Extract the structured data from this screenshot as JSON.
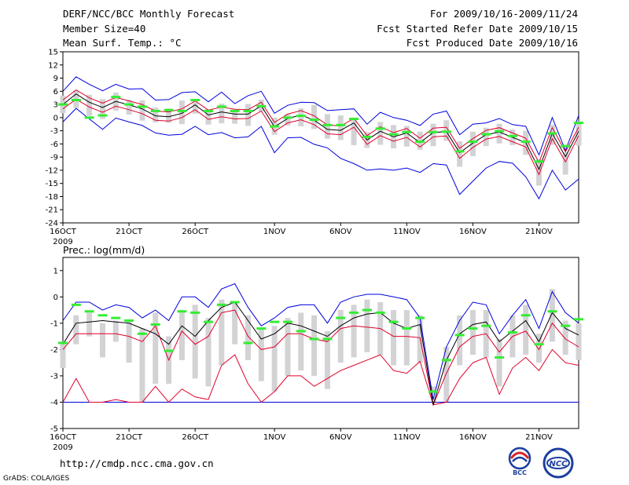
{
  "header": {
    "title": "DERF/NCC/BCC Monthly Forecast",
    "member_size": "Member Size=40",
    "variable": "Mean Surf. Temp.: °C",
    "period": "For 2009/10/16-2009/11/24",
    "fcst_started": "Fcst Started Refer Date 2009/10/15",
    "fcst_produced": "Fcst Produced Date 2009/10/16"
  },
  "footer": {
    "url": "http://cmdp.ncc.cma.gov.cn",
    "grads": "GrADS: COLA/IGES",
    "logo_left_text": "BCC",
    "logo_right_text": "NCC"
  },
  "colors": {
    "box": "#d3d3d6",
    "median": "#000000",
    "inner_band": "#e0002a",
    "outer_band": "#0000dd",
    "observed": "#33ee33"
  },
  "chart_data": [
    {
      "type": "line",
      "title": "Mean Surf. Temp.: °C",
      "ylabel": "°C",
      "ylim": [
        -24,
        15
      ],
      "yticks": [
        15,
        12,
        9,
        6,
        3,
        0,
        -3,
        -6,
        -9,
        -12,
        -15,
        -18,
        -21,
        -24
      ],
      "xlim": [
        16,
        55
      ],
      "xticks": [
        {
          "day": 16,
          "label": "16OCT"
        },
        {
          "day": 21,
          "label": "21OCT"
        },
        {
          "day": 26,
          "label": "26OCT"
        },
        {
          "day": 32,
          "label": "1NOV"
        },
        {
          "day": 37,
          "label": "6NOV"
        },
        {
          "day": 42,
          "label": "11NOV"
        },
        {
          "day": 47,
          "label": "16NOV"
        },
        {
          "day": 52,
          "label": "21NOV"
        }
      ],
      "year_label": "2009",
      "days": [
        16,
        17,
        18,
        19,
        20,
        21,
        22,
        23,
        24,
        25,
        26,
        27,
        28,
        29,
        30,
        31,
        32,
        33,
        34,
        35,
        36,
        37,
        38,
        39,
        40,
        41,
        42,
        43,
        44,
        45,
        46,
        47,
        48,
        49,
        50,
        51,
        52,
        53,
        54,
        55
      ],
      "series": [
        {
          "name": "median",
          "values": [
            3,
            5.4,
            3.5,
            2.3,
            3.7,
            2.9,
            2,
            0.4,
            0.2,
            1,
            2.9,
            0.6,
            1.3,
            0.8,
            0.8,
            2.7,
            -2.1,
            -0.2,
            0.6,
            -0.6,
            -2.7,
            -2.9,
            -1.2,
            -5.1,
            -3.1,
            -4.4,
            -3.5,
            -5.7,
            -3.4,
            -3.2,
            -8,
            -5.8,
            -3.9,
            -3.3,
            -4.5,
            -5.7,
            -11.8,
            -3.6,
            -8.9,
            -3.1
          ]
        },
        {
          "name": "red_upper",
          "values": [
            4,
            6.3,
            4.5,
            3.3,
            4.6,
            3.8,
            3,
            1.5,
            1.3,
            2,
            3.8,
            1.7,
            2.4,
            1.9,
            1.8,
            3.5,
            -1.1,
            0.8,
            1.6,
            0.4,
            -1.7,
            -1.9,
            -0.2,
            -4.1,
            -2.1,
            -3.4,
            -2.5,
            -4.7,
            -2.4,
            -2.2,
            -7,
            -4.8,
            -2.9,
            -2.3,
            -3.5,
            -4.7,
            -10.2,
            -2.3,
            -7.8,
            -2.2
          ]
        },
        {
          "name": "red_lower",
          "values": [
            2,
            4.2,
            2.4,
            1.2,
            2.6,
            1.8,
            0.9,
            -0.6,
            -0.8,
            0,
            1.8,
            -0.4,
            0.2,
            -0.3,
            -0.2,
            1.5,
            -3.2,
            -1.2,
            -0.5,
            -1.6,
            -3.7,
            -3.9,
            -2.2,
            -6.1,
            -4.1,
            -5.4,
            -4.5,
            -6.7,
            -4.4,
            -4.2,
            -9.3,
            -6.8,
            -4.9,
            -4.3,
            -5.5,
            -6.7,
            -13,
            -4.8,
            -10.1,
            -4.1
          ]
        },
        {
          "name": "blue_upper",
          "values": [
            6,
            9.3,
            7.6,
            6.1,
            7.6,
            6.5,
            6.6,
            4,
            4.1,
            5.7,
            5.9,
            3.6,
            5.8,
            3.2,
            5,
            6,
            1,
            2.8,
            3.5,
            3.4,
            1.6,
            1.8,
            2,
            -1.5,
            1.2,
            0,
            -0.6,
            -1.8,
            0.8,
            1.5,
            -3.9,
            -1.5,
            -1.2,
            -0.2,
            -1.6,
            -2,
            -8.5,
            0,
            -7.5,
            0.5
          ]
        },
        {
          "name": "blue_lower",
          "values": [
            -1,
            2.1,
            -0.3,
            -2.7,
            -0.1,
            -1,
            -1.8,
            -3.5,
            -4,
            -3.8,
            -2,
            -3.9,
            -3.4,
            -4.6,
            -4.4,
            -2,
            -8,
            -4.6,
            -4.5,
            -6.1,
            -6.9,
            -9.3,
            -10.5,
            -12,
            -11.7,
            -12,
            -11.5,
            -12.5,
            -10.5,
            -10.8,
            -17.5,
            -14.5,
            -11.5,
            -10,
            -10.4,
            -13.5,
            -18.5,
            -12,
            -16.5,
            -14
          ]
        },
        {
          "name": "observed",
          "values": [
            3,
            4,
            0,
            0.5,
            4.7,
            3,
            2.5,
            1.5,
            1.7,
            1.5,
            4,
            1.5,
            2.5,
            1.5,
            1.5,
            2.6,
            -2,
            0,
            0.4,
            -0.5,
            -1.7,
            -1.7,
            -0.3,
            -4.4,
            -2.5,
            -3.8,
            -3.3,
            -5.5,
            -3.3,
            -3.2,
            -7.7,
            -5.5,
            -3.8,
            -3.1,
            -4.2,
            -5.5,
            -10,
            -3.6,
            -6.5,
            -1.2
          ]
        },
        {
          "name": "box_top",
          "values": [
            5,
            6.2,
            5.2,
            4.2,
            5.7,
            4.1,
            3.9,
            2.3,
            2.1,
            3.9,
            3.6,
            1.9,
            3.2,
            1.6,
            3.1,
            4.1,
            0,
            0.8,
            2.1,
            2.9,
            0.8,
            0.5,
            0,
            -3.3,
            -1,
            -1.7,
            -1.9,
            -3.2,
            -1.4,
            -0.6,
            -5.4,
            -3.2,
            -2.3,
            -1.4,
            -2.7,
            -3,
            -9.5,
            -1.6,
            -7.9,
            -0.8
          ]
        },
        {
          "name": "box_bottom",
          "values": [
            1,
            2.2,
            0.4,
            -0.3,
            1.6,
            0.7,
            -0.7,
            -1.1,
            -1.2,
            -1.5,
            0.9,
            -1.6,
            -1.3,
            -1.4,
            -1.9,
            1.4,
            -3.9,
            -1.8,
            -2,
            -2.6,
            -4.8,
            -5.1,
            -6.3,
            -6.9,
            -6.2,
            -7,
            -6.6,
            -7.3,
            -6.5,
            -5.3,
            -11.2,
            -8.8,
            -6.5,
            -5.9,
            -6.3,
            -8.5,
            -15.5,
            -6.2,
            -13,
            -6.4
          ]
        }
      ]
    },
    {
      "type": "line",
      "title": "Prec.: log(mm/d)",
      "ylabel": "log(mm/d)",
      "ylim": [
        -5,
        1.5
      ],
      "yticks": [
        1,
        0,
        -1,
        -2,
        -3,
        -4,
        -5
      ],
      "xlim": [
        16,
        55
      ],
      "xticks": [
        {
          "day": 16,
          "label": "16OCT"
        },
        {
          "day": 21,
          "label": "21OCT"
        },
        {
          "day": 26,
          "label": "26OCT"
        },
        {
          "day": 32,
          "label": "1NOV"
        },
        {
          "day": 37,
          "label": "6NOV"
        },
        {
          "day": 42,
          "label": "11NOV"
        },
        {
          "day": 47,
          "label": "16NOV"
        },
        {
          "day": 52,
          "label": "21NOV"
        }
      ],
      "year_label": "2009",
      "days": [
        16,
        17,
        18,
        19,
        20,
        21,
        22,
        23,
        24,
        25,
        26,
        27,
        28,
        29,
        30,
        31,
        32,
        33,
        34,
        35,
        36,
        37,
        38,
        39,
        40,
        41,
        42,
        43,
        44,
        45,
        46,
        47,
        48,
        49,
        50,
        51,
        52,
        53,
        54,
        55
      ],
      "series": [
        {
          "name": "median",
          "values": [
            -1.8,
            -1,
            -0.95,
            -0.9,
            -0.95,
            -1,
            -1.2,
            -1.4,
            -1.8,
            -1.1,
            -1.5,
            -0.9,
            -0.4,
            -0.2,
            -0.9,
            -1.6,
            -1.4,
            -1,
            -1.1,
            -1.3,
            -1.5,
            -1.1,
            -0.8,
            -0.65,
            -0.6,
            -1,
            -1.2,
            -1.05,
            -4.1,
            -2.4,
            -1.4,
            -1.05,
            -0.95,
            -1.7,
            -1.3,
            -0.9,
            -1.7,
            -0.6,
            -1.2,
            -1.45
          ]
        },
        {
          "name": "red_upper",
          "values": [
            -2,
            -1.4,
            -1.4,
            -1.4,
            -1.4,
            -1.5,
            -1.7,
            -1.1,
            -2.4,
            -1.3,
            -1.8,
            -1.5,
            -0.6,
            -0.5,
            -1.5,
            -2,
            -1.9,
            -1.4,
            -1.4,
            -1.6,
            -1.7,
            -1.2,
            -1.1,
            -1.15,
            -1.2,
            -1.5,
            -1.5,
            -1.55,
            -4.1,
            -2.9,
            -1.9,
            -1.5,
            -1.4,
            -2.1,
            -1.5,
            -1.3,
            -2,
            -1,
            -1.6,
            -1.9
          ]
        },
        {
          "name": "red_lower",
          "values": [
            -4,
            -3.1,
            -4,
            -4,
            -3.9,
            -4,
            -4,
            -3.4,
            -4,
            -3.5,
            -3.8,
            -3.9,
            -2.6,
            -2.2,
            -3.3,
            -4,
            -3.6,
            -3,
            -3,
            -3.4,
            -3.1,
            -2.8,
            -2.6,
            -2.4,
            -2.2,
            -2.8,
            -2.9,
            -2.45,
            -4.1,
            -4,
            -3.1,
            -2.5,
            -2.3,
            -3.7,
            -2.7,
            -2.3,
            -2.8,
            -2,
            -2.5,
            -2.6
          ]
        },
        {
          "name": "blue_upper",
          "values": [
            -0.9,
            -0.2,
            -0.2,
            -0.5,
            -0.3,
            -0.4,
            -0.8,
            -0.5,
            -0.9,
            0,
            0,
            -0.4,
            0.3,
            0.5,
            -0.4,
            -1.1,
            -0.8,
            -0.4,
            -0.3,
            -0.3,
            -1,
            -0.2,
            0,
            0.1,
            0.1,
            0,
            -0.1,
            -0.8,
            -3.9,
            -1.9,
            -0.9,
            -0.2,
            -0.3,
            -1.4,
            -0.7,
            -0.1,
            -1.2,
            0.2,
            -0.6,
            -1
          ]
        },
        {
          "name": "blue_lower",
          "values": [
            -4,
            -4,
            -4,
            -4,
            -4,
            -4,
            -4,
            -4,
            -4,
            -4,
            -4,
            -4,
            -4,
            -4,
            -4,
            -4,
            -4,
            -4,
            -4,
            -4,
            -4,
            -4,
            -4,
            -4,
            -4,
            -4,
            -4,
            -4,
            -4,
            -4,
            -4,
            -4,
            -4,
            -4,
            -4,
            -4,
            -4,
            -4,
            -4,
            -4
          ]
        },
        {
          "name": "observed",
          "values": [
            -1.75,
            -0.3,
            -0.55,
            -0.7,
            -0.8,
            -0.9,
            -1.4,
            -1.05,
            -2.05,
            -0.55,
            -0.6,
            -0.95,
            -0.3,
            -0.2,
            -1.75,
            -1.2,
            -0.95,
            -0.95,
            -1.3,
            -1.6,
            -1.6,
            -0.8,
            -0.6,
            -0.5,
            -0.6,
            -0.95,
            -1.2,
            -0.8,
            -3.6,
            -2.4,
            -1.45,
            -1.2,
            -1.1,
            -2.3,
            -1.35,
            -0.7,
            -1.8,
            -0.55,
            -1.1,
            -0.85
          ]
        },
        {
          "name": "box_top",
          "values": [
            -1.7,
            -0.7,
            -0.6,
            -1,
            -0.9,
            -0.9,
            -1.2,
            -0.6,
            -1.5,
            -0.5,
            -0.3,
            -0.8,
            -0.1,
            -0.2,
            -0.7,
            -1.2,
            -1.1,
            -0.8,
            -0.6,
            -0.7,
            -1.3,
            -0.5,
            -0.3,
            -0.1,
            -0.2,
            -0.5,
            -0.5,
            -0.7,
            -3.4,
            -1.9,
            -0.7,
            -0.5,
            -0.5,
            -1.6,
            -0.7,
            -0.3,
            -1.4,
            0.3,
            -0.9,
            -1
          ]
        },
        {
          "name": "box_bottom",
          "values": [
            -2.7,
            -1.8,
            -1.5,
            -2.3,
            -1.7,
            -2.5,
            -4,
            -3.3,
            -3.3,
            -2.4,
            -3.1,
            -3.4,
            -2.6,
            -1.8,
            -2.4,
            -3.2,
            -3.6,
            -3,
            -2.8,
            -3,
            -3.5,
            -2.5,
            -2.3,
            -2.1,
            -2.2,
            -2.6,
            -2.6,
            -2.5,
            -3.7,
            -4,
            -2.6,
            -2.2,
            -2.3,
            -3.4,
            -2.3,
            -2.2,
            -2.5,
            -1.7,
            -2.2,
            -2.4
          ]
        }
      ]
    }
  ]
}
